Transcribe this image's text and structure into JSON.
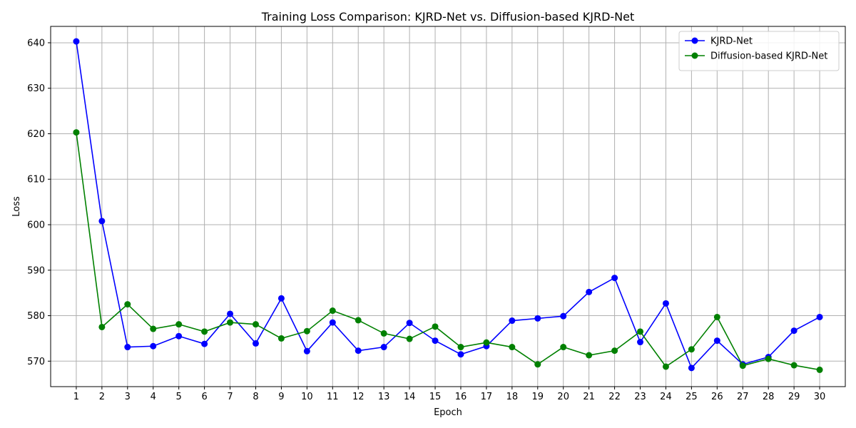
{
  "chart_data": {
    "type": "line",
    "title": "Training Loss Comparison: KJRD-Net vs. Diffusion-based KJRD-Net",
    "xlabel": "Epoch",
    "ylabel": "Loss",
    "x": [
      1,
      2,
      3,
      4,
      5,
      6,
      7,
      8,
      9,
      10,
      11,
      12,
      13,
      14,
      15,
      16,
      17,
      18,
      19,
      20,
      21,
      22,
      23,
      24,
      25,
      26,
      27,
      28,
      29,
      30
    ],
    "xlim": [
      0,
      31
    ],
    "ylim": [
      564.4,
      643.6
    ],
    "yticks": [
      570,
      580,
      590,
      600,
      610,
      620,
      630,
      640
    ],
    "grid": true,
    "legend_position": "top-right",
    "series": [
      {
        "name": "KJRD-Net",
        "color": "#0000ff",
        "values": [
          640.3,
          600.8,
          573.1,
          573.3,
          575.5,
          573.8,
          580.4,
          573.9,
          583.8,
          572.2,
          578.5,
          572.3,
          573.1,
          578.4,
          574.5,
          571.5,
          573.3,
          578.9,
          579.4,
          579.9,
          585.2,
          588.3,
          574.2,
          582.7,
          568.5,
          574.5,
          569.3,
          570.9,
          576.7,
          579.7
        ]
      },
      {
        "name": "Diffusion-based KJRD-Net",
        "color": "#008000",
        "values": [
          620.3,
          577.5,
          582.5,
          577.1,
          578.1,
          576.5,
          578.5,
          578.1,
          575.0,
          576.6,
          581.1,
          579.0,
          576.1,
          574.9,
          577.6,
          573.1,
          574.1,
          573.1,
          569.3,
          573.1,
          571.3,
          572.3,
          576.5,
          568.8,
          572.6,
          579.7,
          569.0,
          570.5,
          569.1,
          568.1
        ]
      }
    ]
  }
}
